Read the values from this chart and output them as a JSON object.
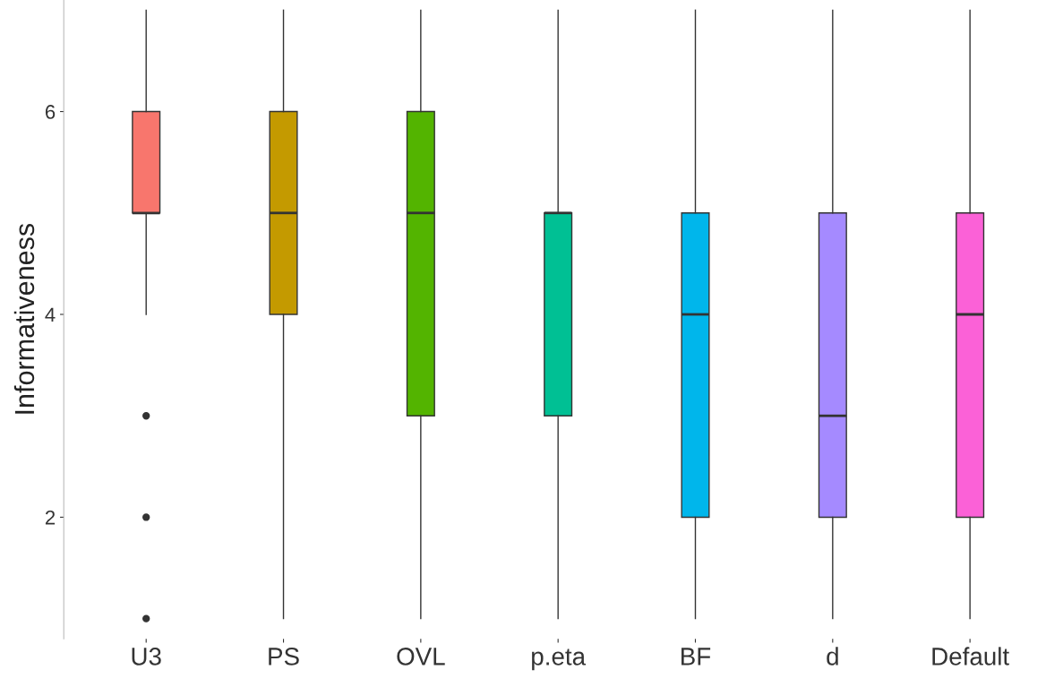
{
  "chart_data": {
    "type": "box",
    "ylabel": "Informativeness",
    "categories": [
      "U3",
      "PS",
      "OVL",
      "p.eta",
      "BF",
      "d",
      "Default"
    ],
    "colors": [
      "#f8766d",
      "#c49a00",
      "#53b400",
      "#00c094",
      "#00b6eb",
      "#a58aff",
      "#fb61d7"
    ],
    "boxes": [
      {
        "low": 4,
        "q1": 5,
        "median": 5,
        "q3": 6,
        "high": 7,
        "outliers": [
          3,
          2,
          1
        ]
      },
      {
        "low": 1,
        "q1": 4,
        "median": 5,
        "q3": 6,
        "high": 7
      },
      {
        "low": 1,
        "q1": 3,
        "median": 5,
        "q3": 6,
        "high": 7
      },
      {
        "low": 1,
        "q1": 3,
        "median": 5,
        "q3": 5,
        "high": 7
      },
      {
        "low": 1,
        "q1": 2,
        "median": 4,
        "q3": 5,
        "high": 7
      },
      {
        "low": 1,
        "q1": 2,
        "median": 3,
        "q3": 5,
        "high": 7
      },
      {
        "low": 1,
        "q1": 2,
        "median": 4,
        "q3": 5,
        "high": 7
      }
    ],
    "ylim": [
      0.8,
      7.1
    ],
    "yticks": [
      2,
      4,
      6
    ],
    "grid": false
  }
}
